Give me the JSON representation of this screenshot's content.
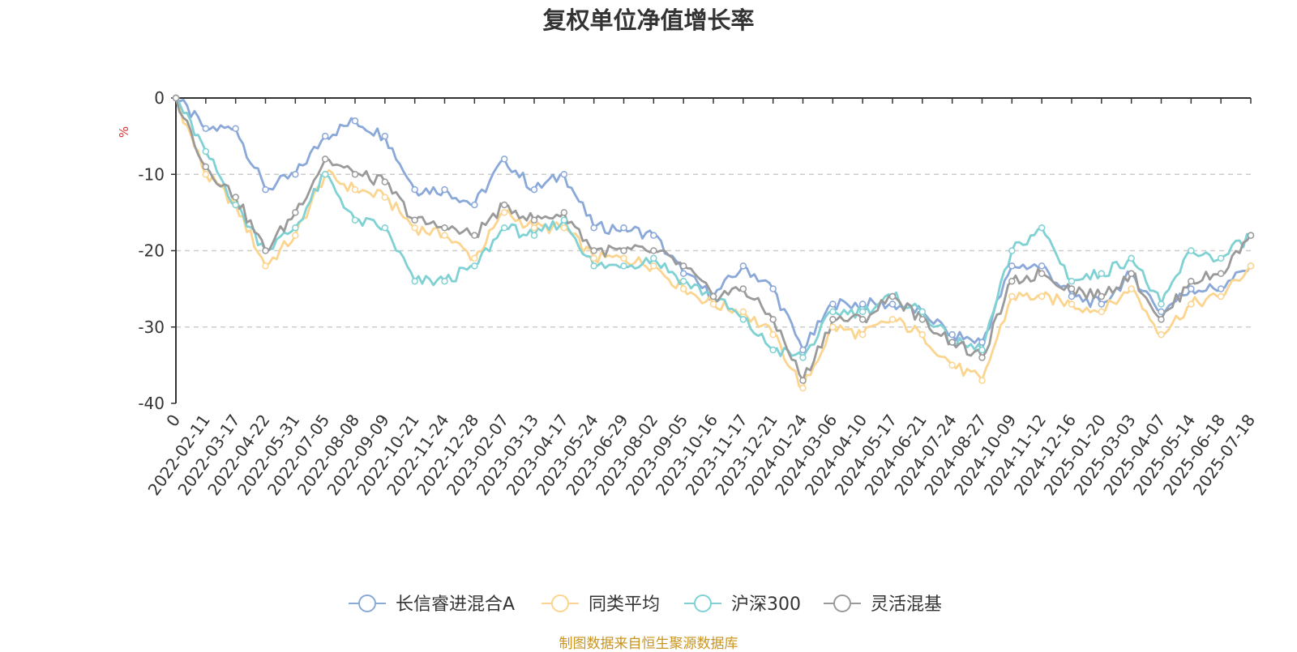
{
  "chart_data": {
    "type": "line",
    "title": "复权单位净值增长率",
    "ylabel": "%",
    "ylim": [
      -40,
      0
    ],
    "yticks": [
      0,
      -10,
      -20,
      -30,
      -40
    ],
    "grid": "horizontal-dashed",
    "legend_position": "bottom",
    "x_tick_labels": [
      "0",
      "2022-02-11",
      "2022-03-17",
      "2022-04-22",
      "2022-05-31",
      "2022-07-05",
      "2022-08-08",
      "2022-09-09",
      "2022-10-21",
      "2022-11-24",
      "2022-12-28",
      "2023-02-07",
      "2023-03-13",
      "2023-04-17",
      "2023-05-24",
      "2023-06-29",
      "2023-08-02",
      "2023-09-05",
      "2023-10-16",
      "2023-11-17",
      "2023-12-21",
      "2024-01-24",
      "2024-03-06",
      "2024-04-10",
      "2024-05-17",
      "2024-06-21",
      "2024-07-24",
      "2024-08-27",
      "2024-10-09",
      "2024-11-12",
      "2024-12-16",
      "2025-01-20",
      "2025-03-03",
      "2025-04-07",
      "2025-05-14",
      "2025-06-18",
      "2025-07-18"
    ],
    "x_index": [
      0,
      1,
      2,
      3,
      4,
      5,
      6,
      7,
      8,
      9,
      10,
      11,
      12,
      13,
      14,
      15,
      16,
      17,
      18,
      19,
      20,
      21,
      22,
      23,
      24,
      25,
      26,
      27,
      28,
      29,
      30,
      31,
      32,
      33,
      34,
      35,
      36
    ],
    "series": [
      {
        "name": "长信睿进混合A",
        "color": "#8aa8d8",
        "values": [
          0,
          -4,
          -4,
          -12,
          -10,
          -5,
          -3,
          -5,
          -12,
          -12,
          -14,
          -8,
          -12,
          -10,
          -17,
          -17,
          -18,
          -23,
          -26,
          -22,
          -25,
          -33,
          -27,
          -27,
          -27,
          -28,
          -31,
          -32,
          -22,
          -22,
          -26,
          -27,
          -23,
          -28,
          -25,
          -25,
          -22
        ]
      },
      {
        "name": "同类平均",
        "color": "#fbd58f",
        "values": [
          0,
          -10,
          -14,
          -22,
          -18,
          -10,
          -12,
          -13,
          -17,
          -18,
          -21,
          -15,
          -17,
          -17,
          -21,
          -21,
          -22,
          -25,
          -27,
          -28,
          -31,
          -38,
          -30,
          -31,
          -29,
          -31,
          -35,
          -37,
          -26,
          -26,
          -27,
          -28,
          -25,
          -31,
          -27,
          -26,
          -22
        ]
      },
      {
        "name": "沪深300",
        "color": "#7fd1d3",
        "values": [
          0,
          -7,
          -14,
          -20,
          -17,
          -10,
          -16,
          -17,
          -24,
          -24,
          -22,
          -17,
          -18,
          -16,
          -22,
          -22,
          -21,
          -24,
          -26,
          -29,
          -33,
          -34,
          -28,
          -28,
          -26,
          -28,
          -32,
          -33,
          -20,
          -17,
          -24,
          -23,
          -21,
          -27,
          -20,
          -21,
          -18
        ]
      },
      {
        "name": "灵活混基",
        "color": "#9a9a9a",
        "values": [
          0,
          -9,
          -13,
          -20,
          -15,
          -8,
          -10,
          -11,
          -16,
          -17,
          -18,
          -14,
          -16,
          -15,
          -20,
          -20,
          -20,
          -22,
          -26,
          -25,
          -29,
          -37,
          -29,
          -29,
          -26,
          -29,
          -32,
          -34,
          -24,
          -23,
          -25,
          -26,
          -23,
          -29,
          -24,
          -23,
          -18
        ]
      }
    ]
  },
  "source_note": "制图数据来自恒生聚源数据库"
}
